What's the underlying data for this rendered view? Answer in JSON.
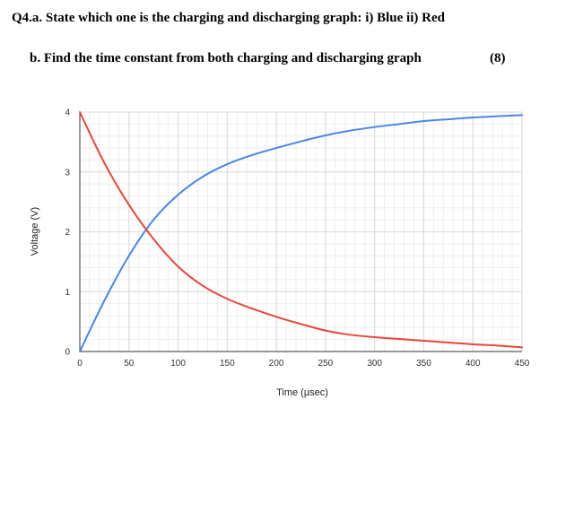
{
  "question": {
    "part_a": "Q4.a. State which one is the charging and discharging graph: i) Blue ii) Red",
    "part_b": "b. Find the time constant from both charging and discharging graph",
    "marks": "(8)"
  },
  "chart_data": {
    "type": "line",
    "xlabel": "Time (µsec)",
    "ylabel": "Voltage (V)",
    "xlim": [
      0,
      450
    ],
    "ylim": [
      0,
      4
    ],
    "x_ticks": [
      0,
      50,
      100,
      150,
      200,
      250,
      300,
      350,
      400,
      450
    ],
    "y_ticks": [
      0,
      1,
      2,
      3,
      4
    ],
    "grid": true,
    "legend": "none",
    "series": [
      {
        "color": "#4a86e8",
        "x": [
          0,
          25,
          50,
          75,
          100,
          125,
          150,
          175,
          200,
          225,
          250,
          275,
          300,
          325,
          350,
          375,
          400,
          425,
          450
        ],
        "y": [
          0,
          0.85,
          1.6,
          2.2,
          2.62,
          2.92,
          3.13,
          3.28,
          3.4,
          3.51,
          3.61,
          3.69,
          3.75,
          3.8,
          3.85,
          3.88,
          3.91,
          3.93,
          3.95
        ]
      },
      {
        "color": "#e8473a",
        "x": [
          0,
          25,
          50,
          75,
          100,
          125,
          150,
          175,
          200,
          225,
          250,
          275,
          300,
          325,
          350,
          375,
          400,
          425,
          450
        ],
        "y": [
          4,
          3.15,
          2.45,
          1.88,
          1.42,
          1.1,
          0.88,
          0.72,
          0.58,
          0.46,
          0.35,
          0.28,
          0.24,
          0.21,
          0.18,
          0.15,
          0.12,
          0.1,
          0.07
        ]
      }
    ]
  }
}
